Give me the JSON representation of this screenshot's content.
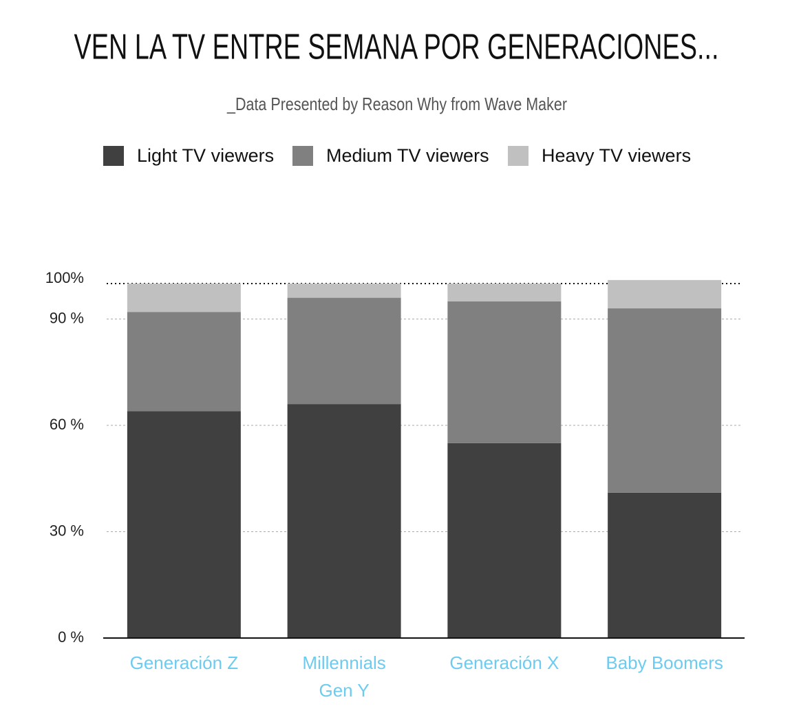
{
  "chart_data": {
    "type": "stacked_bar",
    "title": "VEN LA TV ENTRE SEMANA POR GENERACIONES...",
    "subtitle": "_Data Presented by Reason Why from Wave Maker",
    "categories": [
      "Generación Z",
      "Millennials\nGen Y",
      "Generación X",
      "Baby Boomers"
    ],
    "series": [
      {
        "name": "Light TV viewers",
        "color": "#404040",
        "values": [
          64,
          66,
          55,
          41
        ]
      },
      {
        "name": "Medium TV viewers",
        "color": "#808080",
        "values": [
          28,
          30,
          40,
          52
        ]
      },
      {
        "name": "Heavy TV viewers",
        "color": "#c0c0c0",
        "values": [
          8,
          4,
          5,
          8
        ]
      }
    ],
    "ylim": [
      0,
      100
    ],
    "yticks": [
      {
        "value": 0,
        "label": "0 %"
      },
      {
        "value": 30,
        "label": "30 %"
      },
      {
        "value": 60,
        "label": "60 %"
      },
      {
        "value": 90,
        "label": "90 %"
      },
      {
        "value": 100,
        "label": "100%"
      }
    ],
    "grid": true
  }
}
